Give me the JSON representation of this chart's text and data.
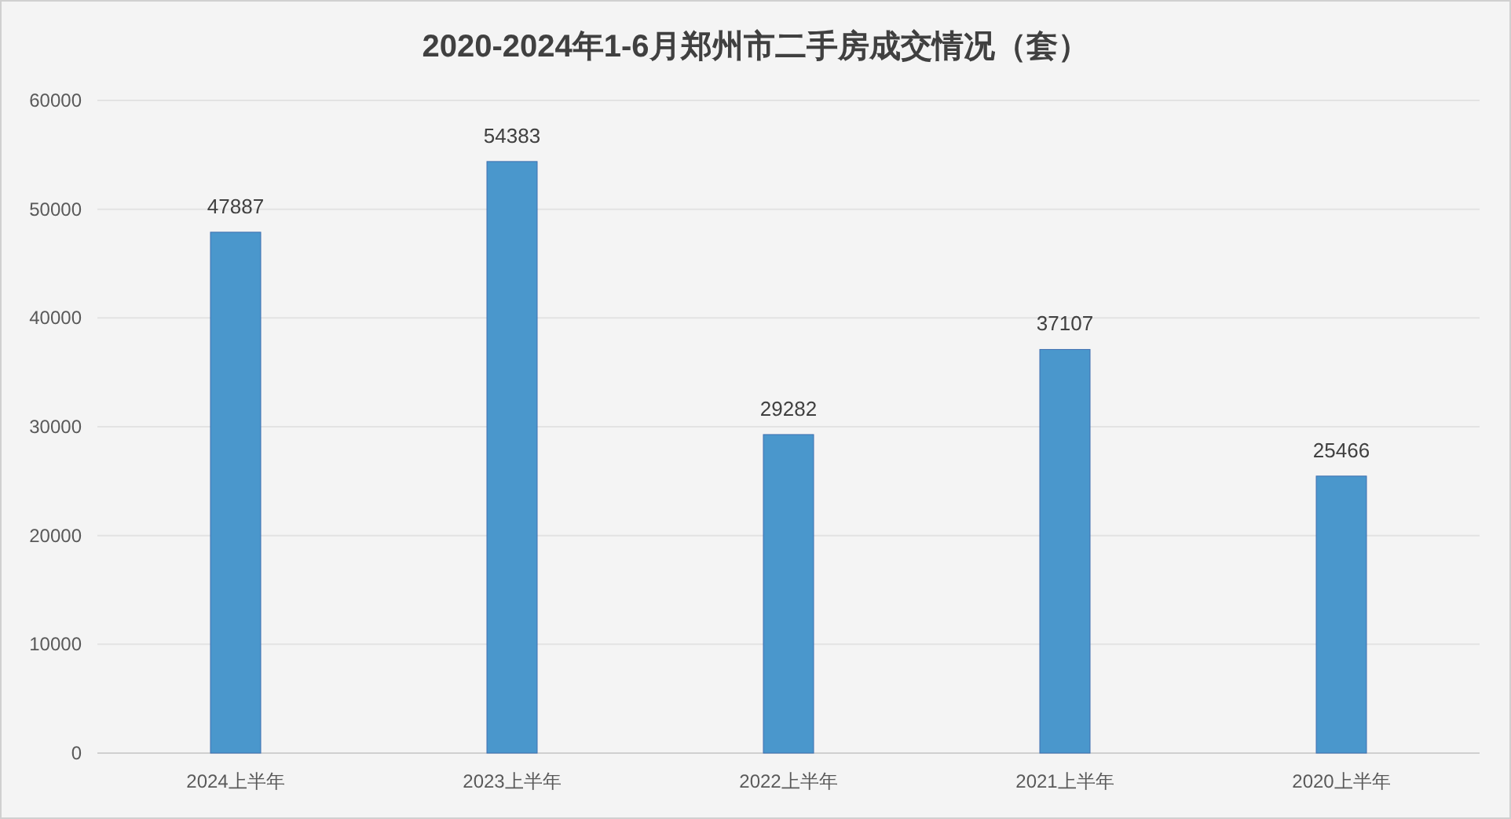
{
  "chart_data": {
    "type": "bar",
    "title": "2020-2024年1-6月郑州市二手房成交情况（套）",
    "categories": [
      "2024上半年",
      "2023上半年",
      "2022上半年",
      "2021上半年",
      "2020上半年"
    ],
    "series": [
      {
        "color": "#4a97cc",
        "values": [
          47887,
          54383,
          29282,
          37107,
          25466
        ]
      }
    ],
    "ylim": [
      0,
      60000
    ],
    "yticks": [
      0,
      10000,
      20000,
      30000,
      40000,
      50000,
      60000
    ],
    "grid": "y",
    "data_labels": true
  }
}
